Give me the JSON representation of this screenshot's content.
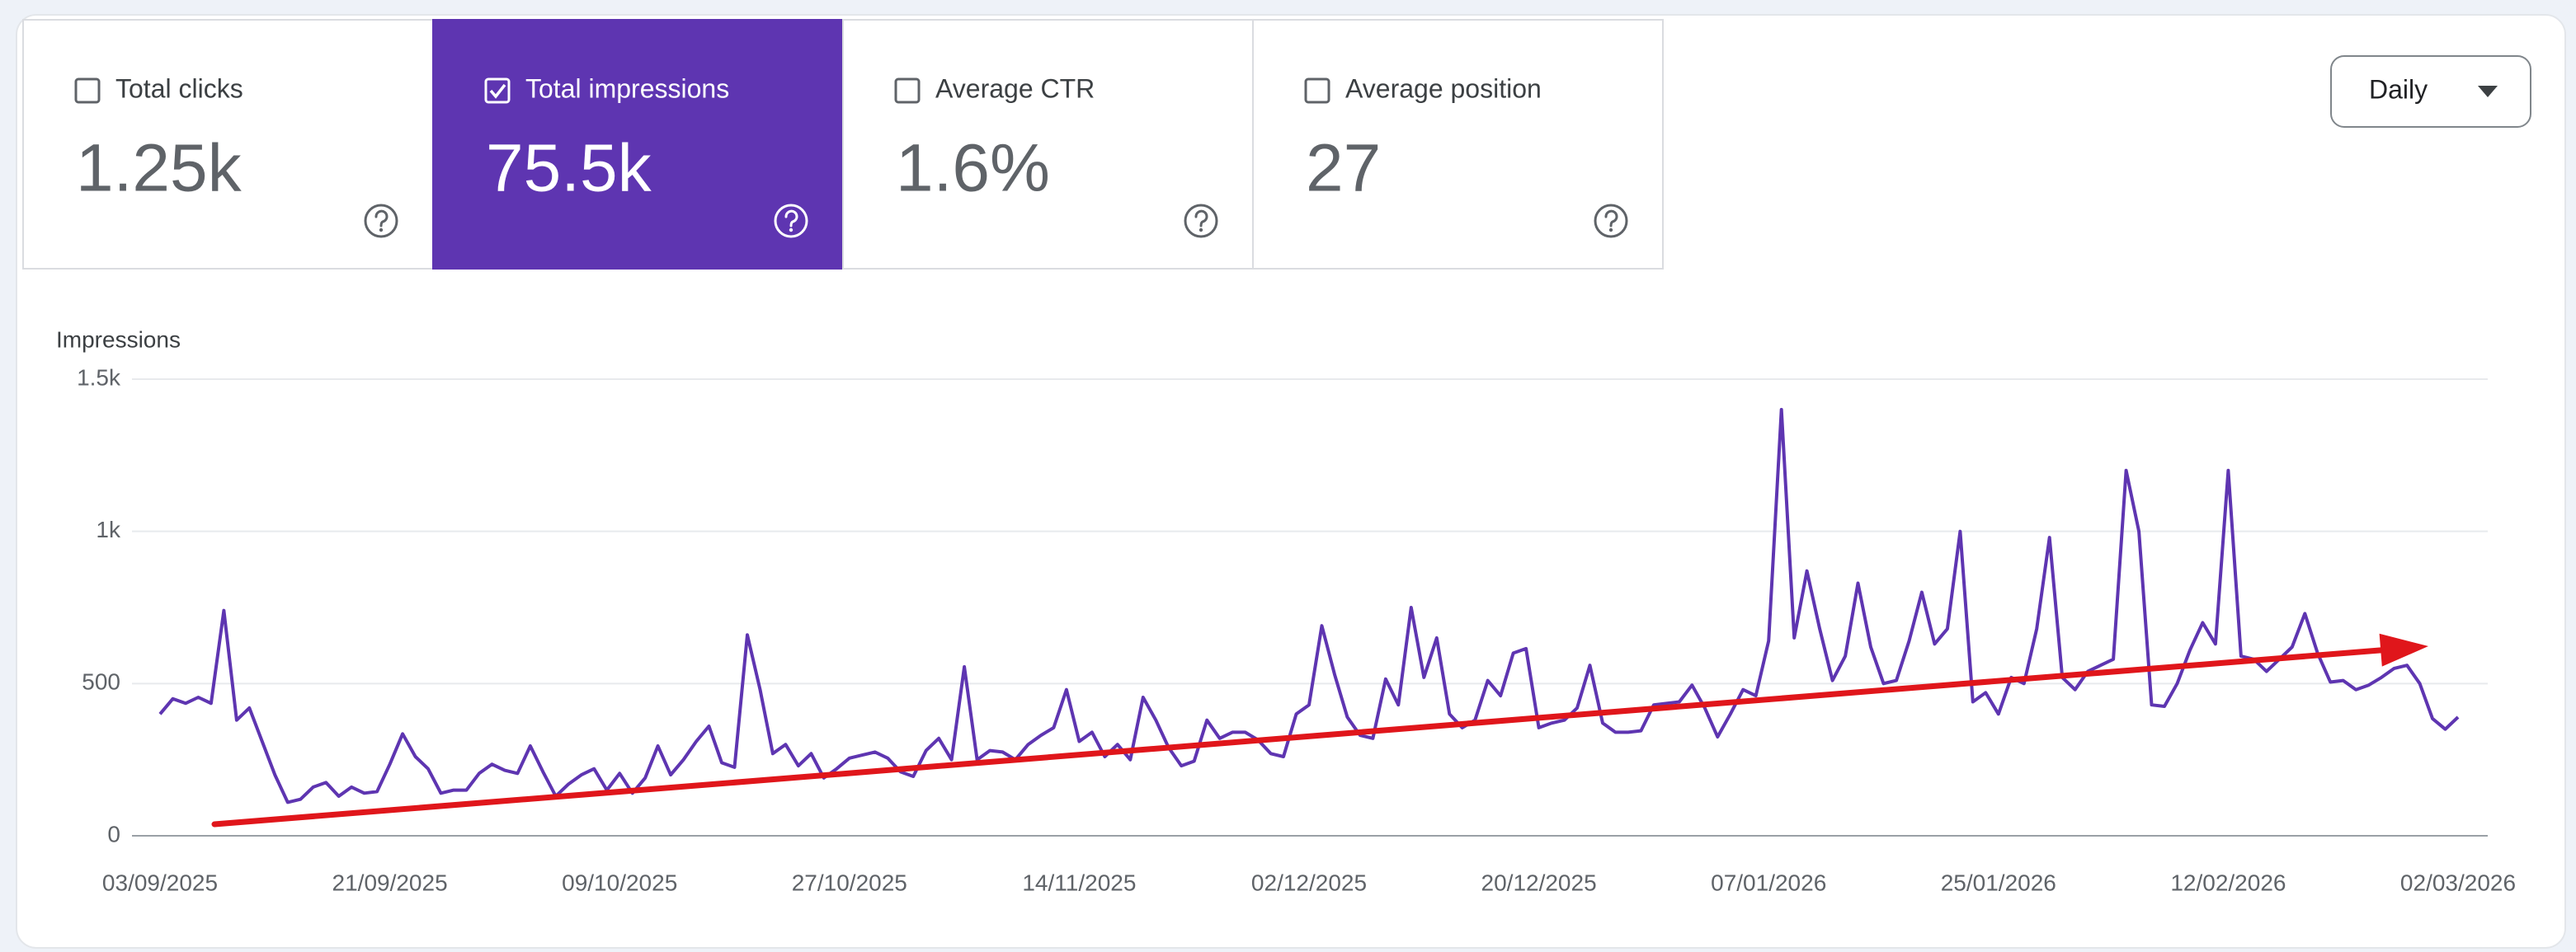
{
  "metrics": [
    {
      "label": "Total clicks",
      "value": "1.25k",
      "selected": false
    },
    {
      "label": "Total impressions",
      "value": "75.5k",
      "selected": true
    },
    {
      "label": "Average CTR",
      "value": "1.6%",
      "selected": false
    },
    {
      "label": "Average position",
      "value": "27",
      "selected": false
    }
  ],
  "dropdown": {
    "label": "Daily"
  },
  "chart_data": {
    "type": "line",
    "y_label": "Impressions",
    "color": "#5e35b1",
    "grid": true,
    "ylim": [
      0,
      1500
    ],
    "yticks": [
      0,
      500,
      {
        "value": 1000,
        "label": "1k"
      },
      {
        "value": 1500,
        "label": "1.5k"
      }
    ],
    "categories": [
      "03/09/2025",
      null,
      null,
      null,
      null,
      null,
      null,
      null,
      null,
      null,
      null,
      null,
      null,
      null,
      null,
      null,
      null,
      null,
      "21/09/2025",
      null,
      null,
      null,
      null,
      null,
      null,
      null,
      null,
      null,
      null,
      null,
      null,
      null,
      null,
      null,
      null,
      null,
      "09/10/2025",
      null,
      null,
      null,
      null,
      null,
      null,
      null,
      null,
      null,
      null,
      null,
      null,
      null,
      null,
      null,
      null,
      null,
      "27/10/2025",
      null,
      null,
      null,
      null,
      null,
      null,
      null,
      null,
      null,
      null,
      null,
      null,
      null,
      null,
      null,
      null,
      null,
      "14/11/2025",
      null,
      null,
      null,
      null,
      null,
      null,
      null,
      null,
      null,
      null,
      null,
      null,
      null,
      null,
      null,
      null,
      null,
      "02/12/2025",
      null,
      null,
      null,
      null,
      null,
      null,
      null,
      null,
      null,
      null,
      null,
      null,
      null,
      null,
      null,
      null,
      null,
      "20/12/2025",
      null,
      null,
      null,
      null,
      null,
      null,
      null,
      null,
      null,
      null,
      null,
      null,
      null,
      null,
      null,
      null,
      null,
      "07/01/2026",
      null,
      null,
      null,
      null,
      null,
      null,
      null,
      null,
      null,
      null,
      null,
      null,
      null,
      null,
      null,
      null,
      null,
      "25/01/2026",
      null,
      null,
      null,
      null,
      null,
      null,
      null,
      null,
      null,
      null,
      null,
      null,
      null,
      null,
      null,
      null,
      null,
      "12/02/2026",
      null,
      null,
      null,
      null,
      null,
      null,
      null,
      null,
      null,
      null,
      null,
      null,
      null,
      null,
      null,
      null,
      null,
      "02/03/2026"
    ],
    "values": [
      400,
      450,
      435,
      455,
      435,
      740,
      380,
      420,
      310,
      200,
      110,
      120,
      160,
      175,
      130,
      160,
      140,
      145,
      235,
      335,
      260,
      220,
      140,
      150,
      150,
      205,
      235,
      215,
      205,
      295,
      210,
      130,
      170,
      200,
      220,
      150,
      205,
      140,
      190,
      295,
      200,
      250,
      310,
      360,
      240,
      225,
      660,
      480,
      270,
      300,
      230,
      270,
      190,
      220,
      255,
      265,
      275,
      255,
      210,
      195,
      280,
      320,
      250,
      555,
      250,
      280,
      275,
      250,
      300,
      330,
      355,
      480,
      310,
      340,
      260,
      300,
      250,
      455,
      380,
      290,
      230,
      245,
      380,
      320,
      340,
      340,
      315,
      270,
      260,
      400,
      430,
      690,
      530,
      390,
      330,
      320,
      515,
      430,
      750,
      520,
      650,
      400,
      355,
      380,
      510,
      460,
      600,
      615,
      355,
      370,
      380,
      420,
      560,
      370,
      340,
      340,
      345,
      430,
      435,
      440,
      495,
      420,
      325,
      400,
      480,
      460,
      640,
      1400,
      650,
      870,
      680,
      510,
      590,
      830,
      620,
      500,
      510,
      640,
      800,
      630,
      680,
      1000,
      440,
      470,
      400,
      520,
      500,
      680,
      980,
      520,
      480,
      540,
      560,
      580,
      1200,
      1000,
      430,
      425,
      500,
      610,
      700,
      630,
      1200,
      590,
      580,
      540,
      580,
      620,
      730,
      600,
      505,
      510,
      480,
      495,
      520,
      550,
      560,
      500,
      385,
      350,
      390
    ]
  }
}
